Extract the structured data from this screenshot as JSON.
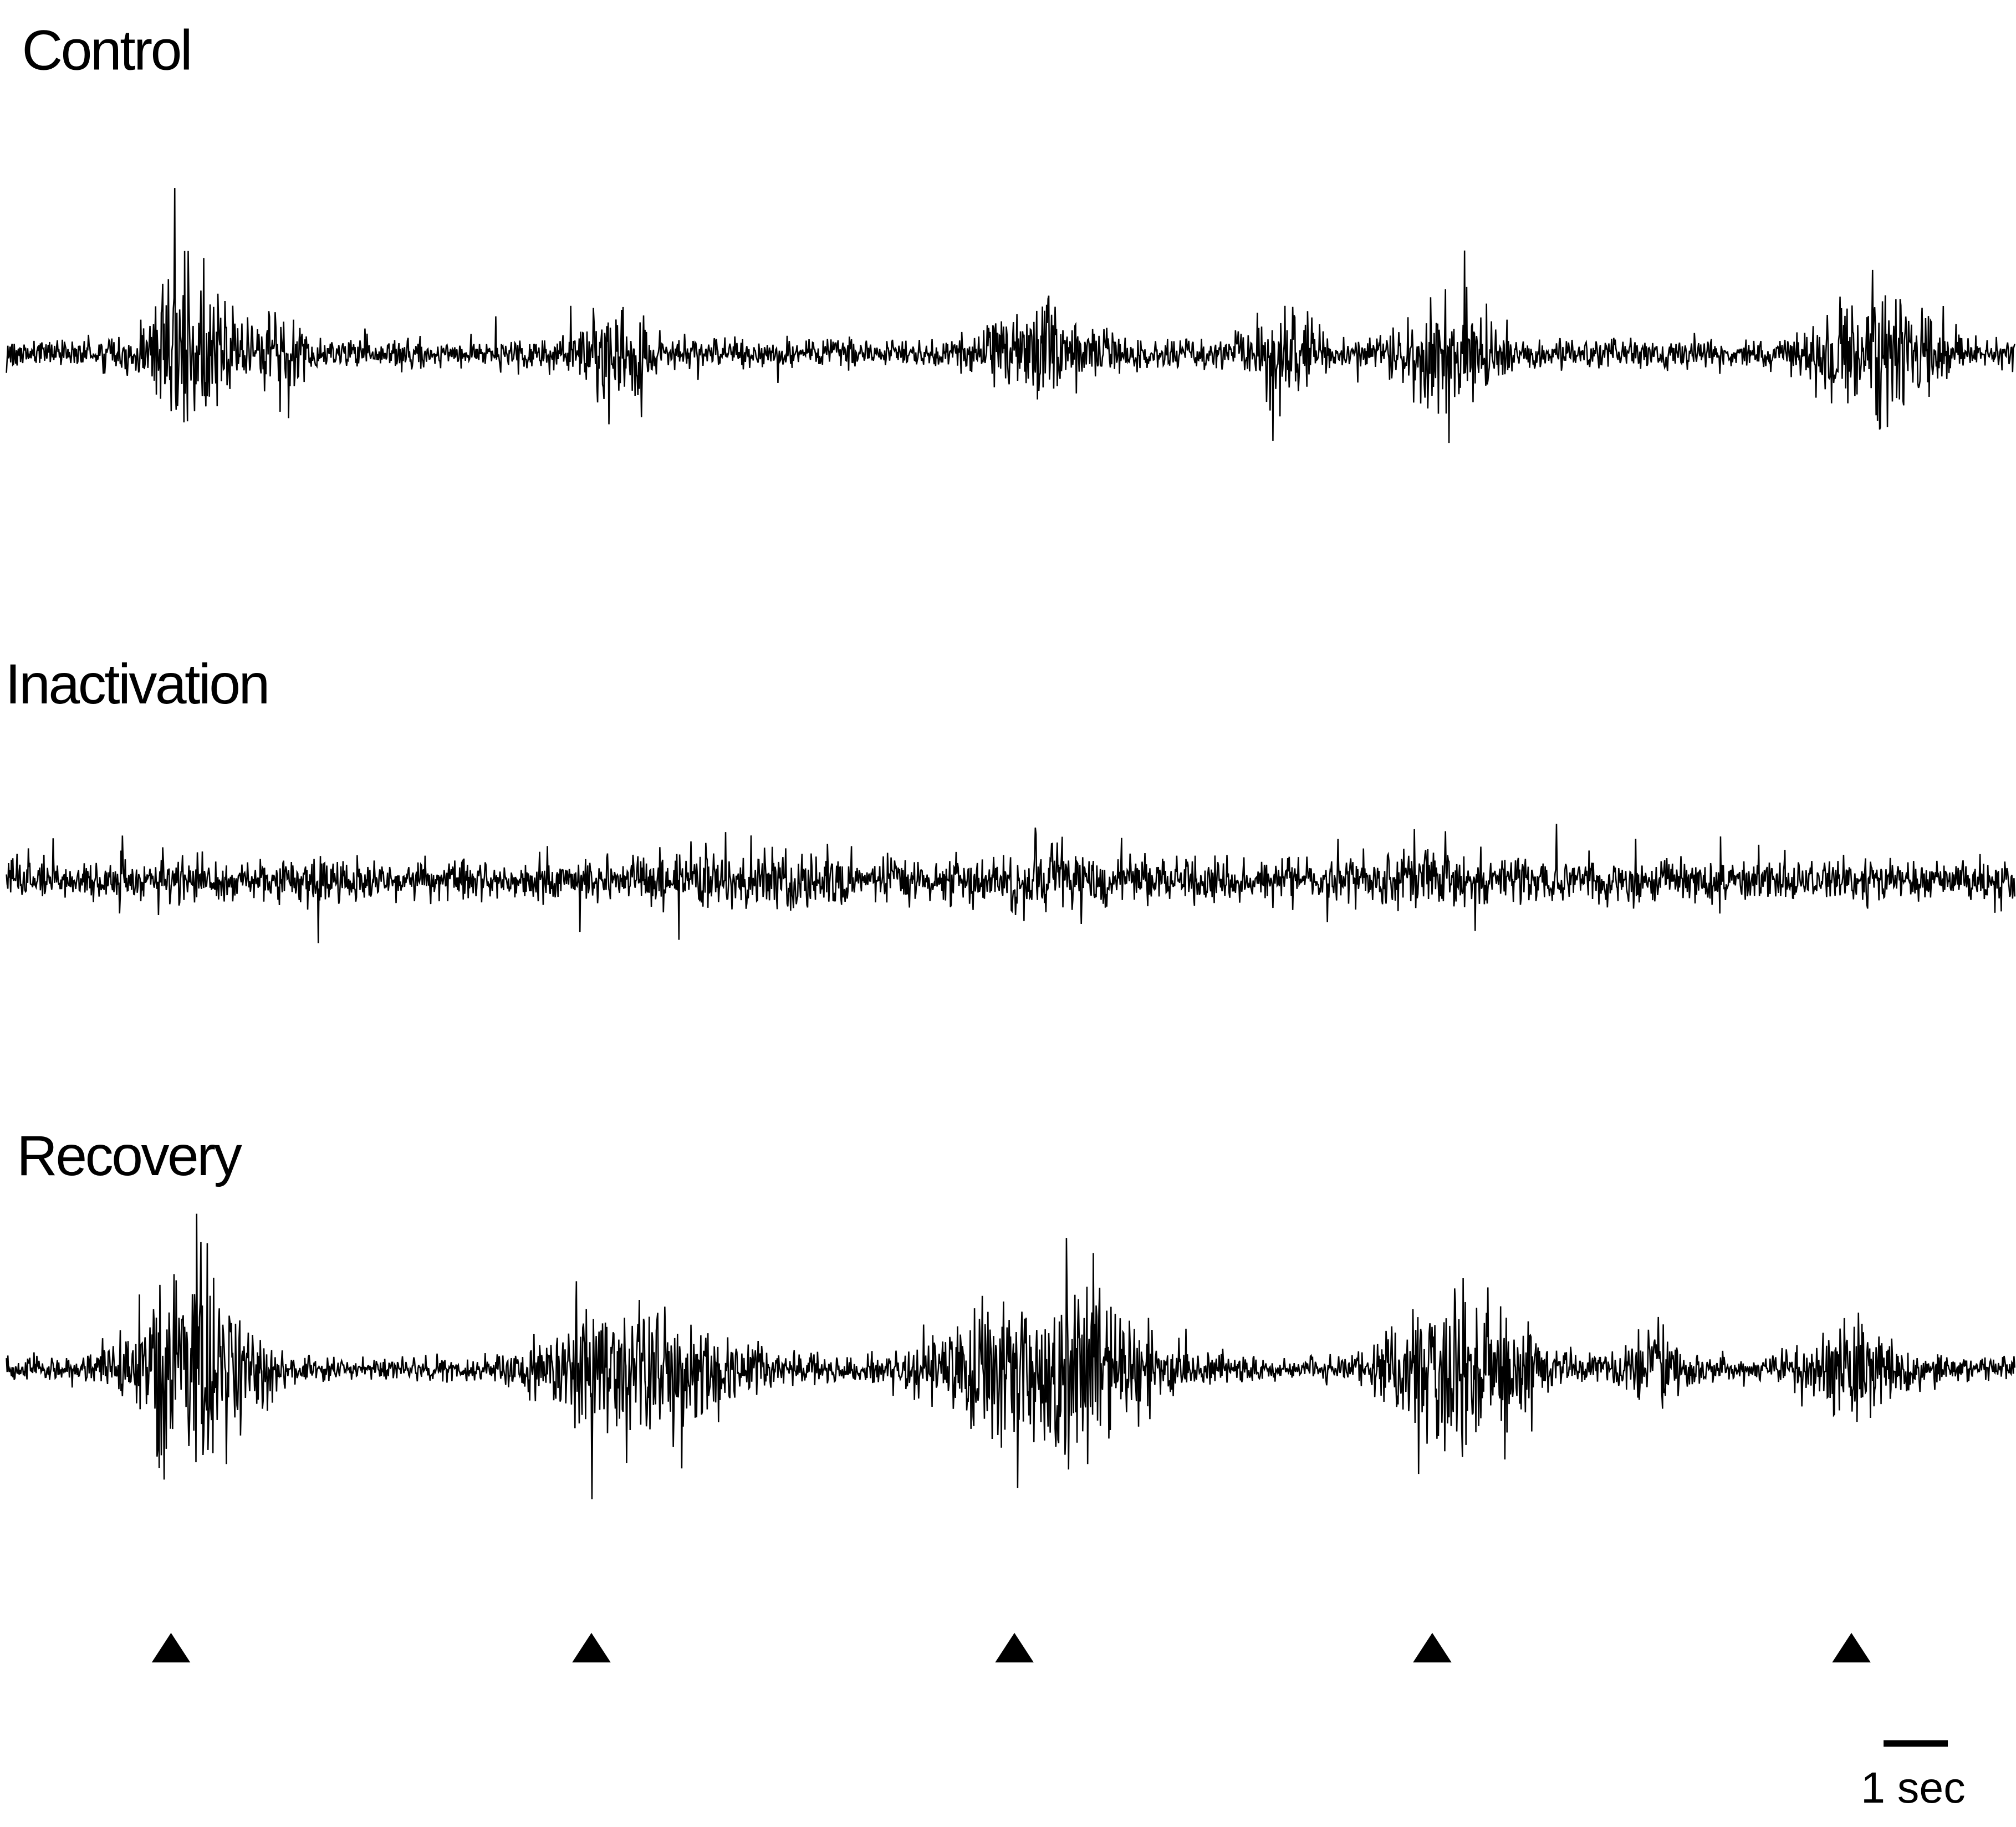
{
  "panels": [
    {
      "label": "Control"
    },
    {
      "label": "Inactivation"
    },
    {
      "label": "Recovery"
    }
  ],
  "scale_bar": {
    "label": "1 sec"
  }
}
